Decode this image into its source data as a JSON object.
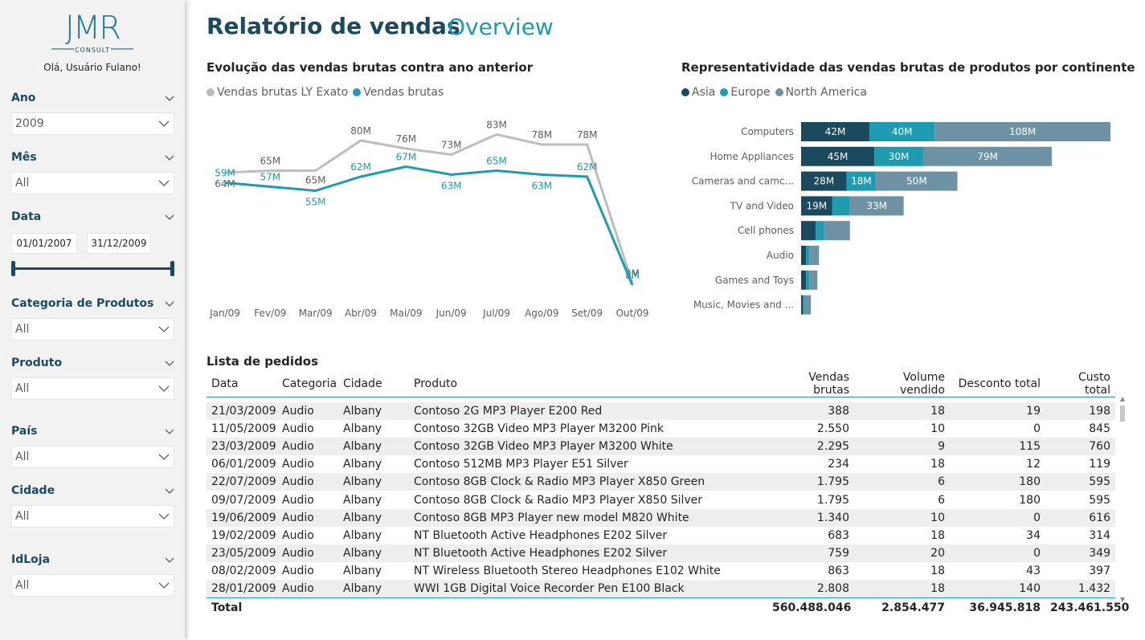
{
  "sidebar": {
    "logo_text": "JMR",
    "logo_sub": "CONSULT",
    "greeting": "Olá, Usuário Fulano!",
    "filters": {
      "ano": {
        "title": "Ano",
        "value": "2009"
      },
      "mes": {
        "title": "Mês",
        "value": "All"
      },
      "data": {
        "title": "Data",
        "start": "01/01/2007",
        "end": "31/12/2009"
      },
      "categoria": {
        "title": "Categoria de Produtos",
        "value": "All"
      },
      "produto": {
        "title": "Produto",
        "value": "All"
      },
      "pais": {
        "title": "País",
        "value": "All"
      },
      "cidade": {
        "title": "Cidade",
        "value": "All"
      },
      "idloja": {
        "title": "IdLoja",
        "value": "All"
      }
    }
  },
  "header": {
    "title": "Relatório de vendas",
    "subtitle": "Overview"
  },
  "colors": {
    "dark": "#1b4a5e",
    "teal": "#1f9bb0",
    "slate": "#6e92a3",
    "gray": "#bdbdbd"
  },
  "chart_data": [
    {
      "type": "line",
      "title": "Evolução das vendas brutas contra ano anterior",
      "categories": [
        "Jan/09",
        "Fev/09",
        "Mar/09",
        "Abr/09",
        "Mai/09",
        "Jun/09",
        "Jul/09",
        "Ago/09",
        "Set/09",
        "Out/09"
      ],
      "series": [
        {
          "name": "Vendas brutas LY Exato",
          "color": "#bdbdbd",
          "values": [
            64,
            65,
            65,
            80,
            76,
            73,
            83,
            78,
            78,
            9
          ],
          "labels": [
            "64M",
            "65M",
            "65M",
            "80M",
            "76M",
            "73M",
            "83M",
            "78M",
            "78M",
            "9M"
          ]
        },
        {
          "name": "Vendas brutas",
          "color": "#1f9bb0",
          "values": [
            59,
            57,
            55,
            62,
            67,
            63,
            65,
            63,
            62,
            8
          ],
          "labels": [
            "59M",
            "57M",
            "55M",
            "62M",
            "67M",
            "63M",
            "65M",
            "63M",
            "62M",
            "8M"
          ]
        }
      ],
      "ylim": [
        0,
        90
      ]
    },
    {
      "type": "bar",
      "orientation": "horizontal",
      "stacked": true,
      "title": "Representatividade das vendas brutas de produtos por continente",
      "categories": [
        "Computers",
        "Home Appliances",
        "Cameras and camc...",
        "TV and Video",
        "Cell phones",
        "Audio",
        "Games and Toys",
        "Music, Movies and ..."
      ],
      "series": [
        {
          "name": "Asia",
          "color": "#1b4a5e",
          "values": [
            42,
            45,
            28,
            19,
            9,
            3,
            3,
            1
          ],
          "labels": [
            "42M",
            "45M",
            "28M",
            "19M",
            "",
            "",
            "",
            ""
          ]
        },
        {
          "name": "Europe",
          "color": "#1f9bb0",
          "values": [
            40,
            30,
            18,
            11,
            5,
            2,
            2,
            1
          ],
          "labels": [
            "40M",
            "30M",
            "18M",
            "",
            "",
            "",
            "",
            ""
          ]
        },
        {
          "name": "North America",
          "color": "#6e92a3",
          "values": [
            108,
            79,
            50,
            33,
            16,
            6,
            5,
            4
          ],
          "labels": [
            "108M",
            "79M",
            "50M",
            "33M",
            "",
            "",
            "",
            ""
          ]
        }
      ],
      "xlim": [
        0,
        190
      ]
    }
  ],
  "table": {
    "title": "Lista de pedidos",
    "columns": [
      "Data",
      "Categoria",
      "Cidade",
      "Produto",
      "Vendas brutas",
      "Volume vendido",
      "Desconto total",
      "Custo total"
    ],
    "rows": [
      [
        "21/03/2009",
        "Audio",
        "Albany",
        "Contoso 2G MP3 Player E200 Red",
        "388",
        "18",
        "19",
        "198"
      ],
      [
        "11/05/2009",
        "Audio",
        "Albany",
        "Contoso 32GB Video MP3 Player M3200 Pink",
        "2.550",
        "10",
        "0",
        "845"
      ],
      [
        "23/03/2009",
        "Audio",
        "Albany",
        "Contoso 32GB Video MP3 Player M3200 White",
        "2.295",
        "9",
        "115",
        "760"
      ],
      [
        "06/01/2009",
        "Audio",
        "Albany",
        "Contoso 512MB MP3 Player E51 Silver",
        "234",
        "18",
        "12",
        "119"
      ],
      [
        "22/07/2009",
        "Audio",
        "Albany",
        "Contoso 8GB Clock & Radio MP3 Player X850 Green",
        "1.795",
        "6",
        "180",
        "595"
      ],
      [
        "09/07/2009",
        "Audio",
        "Albany",
        "Contoso 8GB Clock & Radio MP3 Player X850 Silver",
        "1.795",
        "6",
        "180",
        "595"
      ],
      [
        "19/06/2009",
        "Audio",
        "Albany",
        "Contoso 8GB MP3 Player new model M820 White",
        "1.340",
        "10",
        "0",
        "616"
      ],
      [
        "19/02/2009",
        "Audio",
        "Albany",
        "NT Bluetooth Active Headphones E202 Silver",
        "683",
        "18",
        "34",
        "314"
      ],
      [
        "23/05/2009",
        "Audio",
        "Albany",
        "NT Bluetooth Active Headphones E202 Silver",
        "759",
        "20",
        "0",
        "349"
      ],
      [
        "08/02/2009",
        "Audio",
        "Albany",
        "NT Wireless Bluetooth Stereo Headphones E102 White",
        "863",
        "18",
        "43",
        "397"
      ],
      [
        "28/01/2009",
        "Audio",
        "Albany",
        "WWI 1GB Digital Voice Recorder Pen E100 Black",
        "2.808",
        "18",
        "140",
        "1.432"
      ]
    ],
    "total": [
      "Total",
      "560.488.046",
      "2.854.477",
      "36.945.818",
      "243.461.550"
    ]
  }
}
